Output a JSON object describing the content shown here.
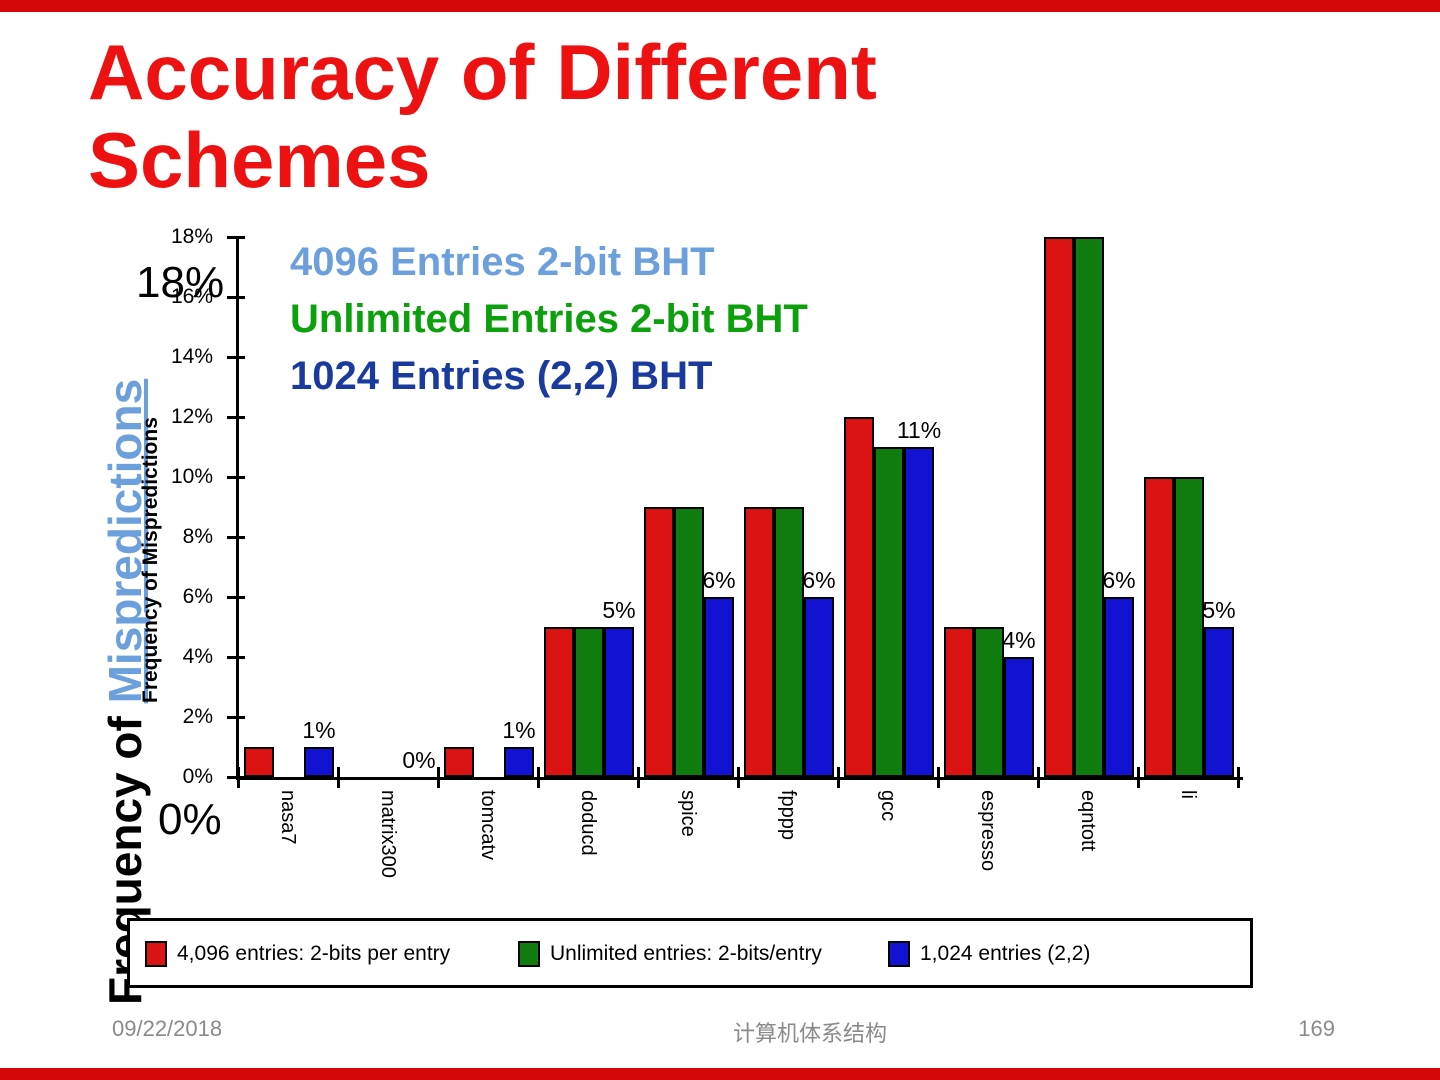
{
  "slide": {
    "title_line1": "Accuracy of Different",
    "title_line2": "Schemes",
    "title": "Accuracy of Different Schemes",
    "footer_date": "09/22/2018",
    "footer_center": "计算机体系结构",
    "footer_page": "169"
  },
  "colors": {
    "title_red": "#ee1111",
    "edge_bar_red": "#d40808",
    "series_red": "#dc1313",
    "series_green": "#107c10",
    "series_blue": "#1212d2",
    "annotation_light_blue": "#6ca0dc",
    "annotation_green": "#0da00d",
    "annotation_dark_blue": "#1a3a9e",
    "footer_gray": "#8a8a8a"
  },
  "annotations": {
    "bht_4096": "4096 Entries 2-bit BHT",
    "bht_unlimited": "Unlimited Entries 2-bit BHT",
    "bht_1024": "1024 Entries (2,2) BHT",
    "big_top_label": "18%",
    "big_bottom_label": "0%",
    "axis_title_prefix": "Frequency of ",
    "axis_title_highlight": "Mispredictions",
    "axis_title_small": "Frequency of Mispredictions"
  },
  "chart_data": {
    "type": "bar",
    "title": "",
    "xlabel": "",
    "ylabel": "Frequency of Mispredictions",
    "ylim": [
      0,
      18
    ],
    "grid": false,
    "legend_position": "bottom-box",
    "categories": [
      "nasa7",
      "matrix300",
      "tomcatv",
      "doducd",
      "spice",
      "fpppp",
      "gcc",
      "espresso",
      "eqntott",
      "li"
    ],
    "series": [
      {
        "name": "4,096 entries: 2-bits per entry",
        "color": "#dc1313",
        "values": [
          1,
          0,
          1,
          5,
          9,
          9,
          12,
          5,
          18,
          10
        ]
      },
      {
        "name": "Unlimited entries: 2-bits/entry",
        "color": "#107c10",
        "values": [
          0,
          0,
          0,
          5,
          9,
          9,
          11,
          5,
          18,
          10
        ]
      },
      {
        "name": "1,024 entries (2,2)",
        "color": "#1212d2",
        "values": [
          1,
          0,
          1,
          5,
          6,
          6,
          11,
          4,
          6,
          5
        ]
      }
    ],
    "data_labels": [
      "1%",
      "0%",
      "1%",
      "5%",
      "6%",
      "6%",
      "11%",
      "4%",
      "6%",
      "5%"
    ],
    "y_ticks": [
      "18%",
      "16%",
      "14%",
      "12%",
      "10%",
      "8%",
      "6%",
      "4%",
      "2%",
      "0%"
    ]
  }
}
